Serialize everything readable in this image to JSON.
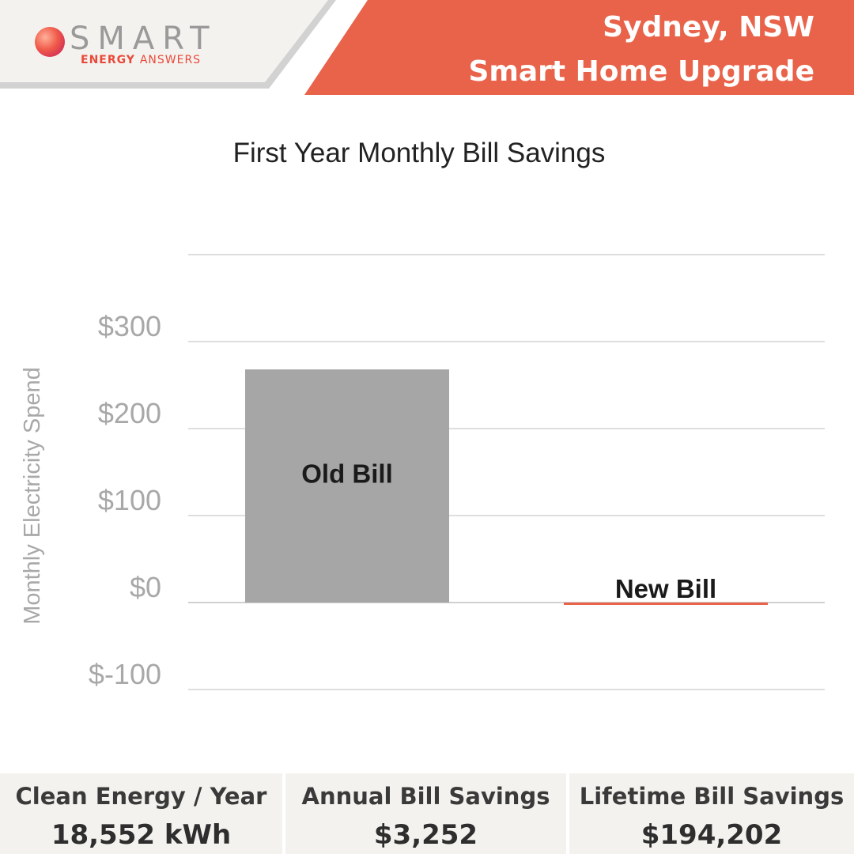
{
  "header": {
    "brand_word": "SMART",
    "brand_sub_bold": "ENERGY",
    "brand_sub_thin": "ANSWERS",
    "location": "Sydney, NSW",
    "subtitle": "Smart Home Upgrade",
    "accent_color": "#e8634a",
    "panel_color": "#f4f2ee"
  },
  "chart_data": {
    "type": "bar",
    "title": "First Year Monthly Bill Savings",
    "ylabel": "Monthly Electricity Spend",
    "xlabel": "",
    "categories": [
      "Old Bill",
      "New Bill"
    ],
    "values": [
      268,
      -2
    ],
    "bar_colors": [
      "#a6a6a6",
      "#e8634a"
    ],
    "ylim": [
      -100,
      400
    ],
    "yticks": [
      -100,
      0,
      100,
      200,
      300,
      400
    ],
    "ytick_labels": [
      "$-100",
      "$0",
      "$100",
      "$200",
      "$300",
      ""
    ],
    "grid": true,
    "legend": "none"
  },
  "stats": [
    {
      "label": "Clean Energy / Year",
      "value": "18,552 kWh"
    },
    {
      "label": "Annual Bill Savings",
      "value": "$3,252"
    },
    {
      "label": "Lifetime Bill Savings",
      "value": "$194,202"
    }
  ]
}
